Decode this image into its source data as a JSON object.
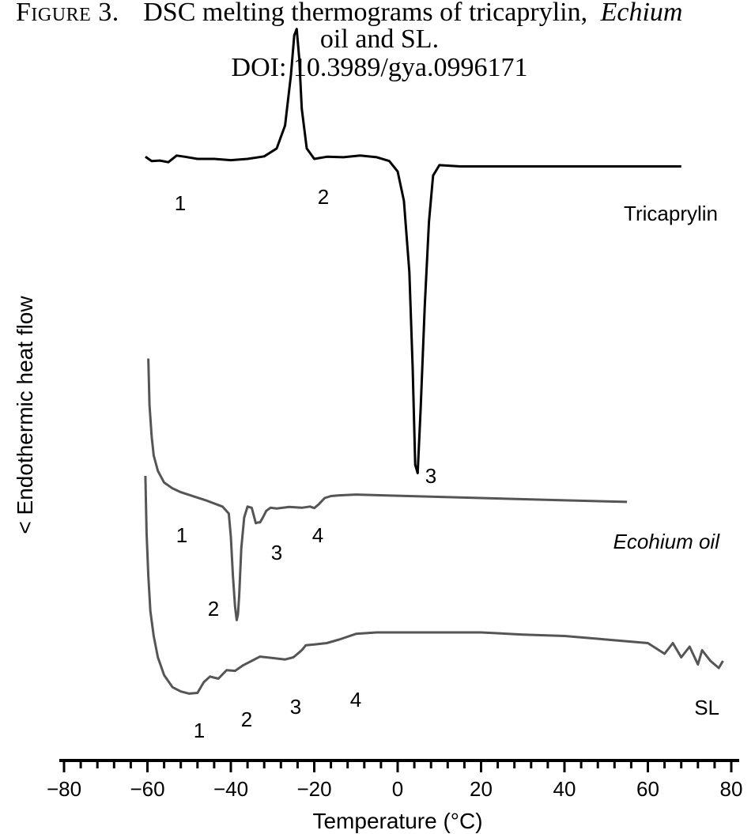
{
  "figure": {
    "label": "Figure 3.",
    "caption_plain": "DSC melting thermograms of tricaprylin,",
    "caption_italic": "Echium",
    "caption_line2": "oil and SL.",
    "doi": "DOI: 10.3989/gya.0996171"
  },
  "chart_data": {
    "type": "line",
    "xlabel": "Temperature (°C)",
    "ylabel": "< Endothermic heat flow",
    "xlim": [
      -80,
      80
    ],
    "xticks": [
      -80,
      -60,
      -40,
      -20,
      0,
      20,
      40,
      60,
      80
    ],
    "grid": false,
    "y_units": "relative heat flow (arbitrary, curves offset vertically)",
    "series": [
      {
        "name": "Tricaprylin",
        "color": "#000000",
        "x": [
          -60.5,
          -59,
          -57,
          -55,
          -53,
          -51,
          -48,
          -44,
          -40,
          -36,
          -32,
          -29,
          -27,
          -25.6,
          -24.8,
          -24.2,
          -23.6,
          -23,
          -21.8,
          -20,
          -17,
          -13,
          -9,
          -5,
          -2,
          0,
          1.5,
          2.8,
          3.6,
          4.2,
          4.8,
          5.5,
          6.5,
          7.5,
          8.5,
          10,
          15,
          25,
          40,
          55,
          68
        ],
        "y": [
          0.5,
          -0.5,
          -0.4,
          -0.8,
          0.8,
          0.5,
          0,
          0,
          -0.3,
          0,
          0.6,
          2.5,
          8,
          20,
          29.5,
          31,
          24,
          12,
          2.5,
          0,
          0.5,
          0.4,
          0.8,
          0.4,
          -0.5,
          -3,
          -10,
          -27,
          -50,
          -73,
          -75,
          -60,
          -35,
          -15,
          -4,
          -1.5,
          -1.8,
          -1.8,
          -1.8,
          -1.8,
          -1.8
        ]
      },
      {
        "name": "Ecohium oil",
        "color": "#555555",
        "x": [
          -59.8,
          -59.5,
          -59,
          -58.5,
          -57.5,
          -56,
          -54,
          -52,
          -50,
          -46,
          -42,
          -40.5,
          -40,
          -39.5,
          -39,
          -38.6,
          -38.3,
          -38,
          -37.5,
          -36.8,
          -36,
          -35,
          -34,
          -33.5,
          -33,
          -32.3,
          -31.5,
          -30.5,
          -29,
          -26,
          -23,
          -21,
          -20,
          -19,
          -17.5,
          -16,
          -14,
          -10,
          0,
          20,
          40,
          55
        ],
        "y": [
          36,
          24,
          16,
          11,
          7,
          4,
          2.5,
          1.5,
          0.8,
          -0.6,
          -2.2,
          -4,
          -10,
          -20,
          -28,
          -31.5,
          -30,
          -25,
          -13,
          -5,
          -2.2,
          -2.5,
          -6.5,
          -6.3,
          -6.3,
          -5,
          -3.3,
          -2.5,
          -2.7,
          -2.3,
          -2.5,
          -2.2,
          -2.6,
          -1.7,
          0,
          0.5,
          0.7,
          0.9,
          0.6,
          0,
          -0.6,
          -1
        ]
      },
      {
        "name": "SL",
        "color": "#555555",
        "x": [
          -60.5,
          -60.2,
          -59.8,
          -59.3,
          -58.5,
          -57.5,
          -56,
          -54,
          -52,
          -50,
          -48,
          -46.5,
          -45,
          -43,
          -41,
          -39,
          -37,
          -35,
          -33,
          -30,
          -27,
          -25,
          -23,
          -22,
          -20,
          -17,
          -14,
          -10,
          -5,
          0,
          10,
          20,
          30,
          40,
          50,
          60,
          64,
          66,
          68,
          70,
          72,
          73,
          75,
          77,
          78
        ],
        "y": [
          26,
          18,
          12,
          7,
          3.5,
          0.5,
          -2,
          -3.7,
          -4.3,
          -4.6,
          -4.5,
          -3,
          -2.2,
          -2.5,
          -1.3,
          -1.4,
          -0.6,
          0,
          0.6,
          0.4,
          0.2,
          0.5,
          1.5,
          2.2,
          2.3,
          2.5,
          3,
          3.8,
          4,
          4,
          4,
          4,
          3.7,
          3.5,
          3,
          2.5,
          1,
          2.5,
          0.5,
          2,
          -0.5,
          1.5,
          0,
          -1,
          0
        ]
      }
    ],
    "series_label_positions": [
      "right of curve",
      "right of curve",
      "right of curve"
    ],
    "annotations": {
      "tricaprylin": [
        "1",
        "2",
        "3"
      ],
      "ecohium": [
        "1",
        "2",
        "3",
        "4"
      ],
      "sl": [
        "1",
        "2",
        "3",
        "4"
      ]
    }
  }
}
